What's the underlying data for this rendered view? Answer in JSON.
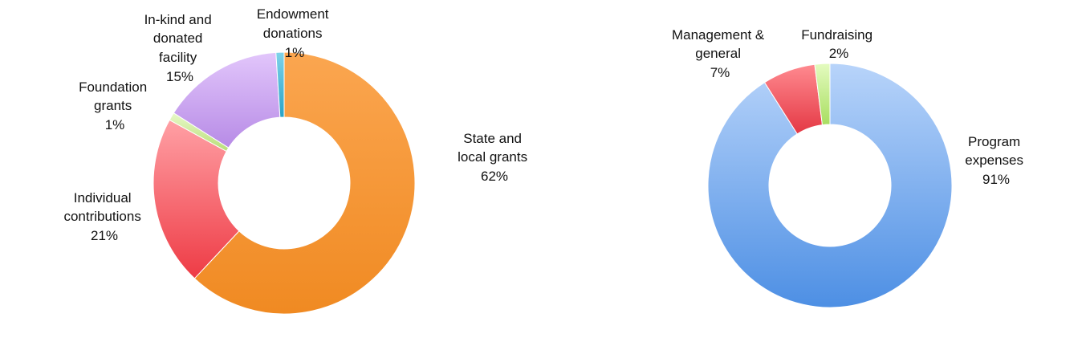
{
  "chart_data": [
    {
      "type": "pie",
      "donut": true,
      "title": "",
      "slices": [
        {
          "label": "State and local grants",
          "label_lines": [
            "State and",
            "local grants"
          ],
          "value": 62,
          "value_label": "62%",
          "color": "#F79A38"
        },
        {
          "label": "Individual contributions",
          "label_lines": [
            "Individual",
            "contributions"
          ],
          "value": 21,
          "value_label": "21%",
          "color": "#F7676E"
        },
        {
          "label": "Foundation grants",
          "label_lines": [
            "Foundation",
            "grants"
          ],
          "value": 1,
          "value_label": "1%",
          "color": "#D4EFA0"
        },
        {
          "label": "In-kind and donated facility",
          "label_lines": [
            "In-kind and",
            "donated",
            "facility"
          ],
          "value": 15,
          "value_label": "15%",
          "color": "#C9A3EE"
        },
        {
          "label": "Endowment donations",
          "label_lines": [
            "Endowment",
            "donations"
          ],
          "value": 1,
          "value_label": "1%",
          "color": "#3FB7D6"
        }
      ]
    },
    {
      "type": "pie",
      "donut": true,
      "title": "",
      "slices": [
        {
          "label": "Program expenses",
          "label_lines": [
            "Program",
            "expenses"
          ],
          "value": 91,
          "value_label": "91%",
          "color": "#8DB8F2"
        },
        {
          "label": "Management & general",
          "label_lines": [
            "Management &",
            "general"
          ],
          "value": 7,
          "value_label": "7%",
          "color": "#F25A62"
        },
        {
          "label": "Fundraising",
          "label_lines": [
            "Fundraising"
          ],
          "value": 2,
          "value_label": "2%",
          "color": "#C9F08E"
        }
      ]
    }
  ]
}
